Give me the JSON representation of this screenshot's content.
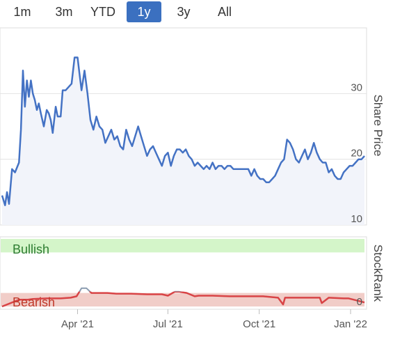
{
  "range_selector": {
    "buttons": [
      "1m",
      "3m",
      "YTD",
      "1y",
      "3y",
      "All"
    ],
    "active": "1y"
  },
  "colors": {
    "price_line": "#4472c4",
    "bullish_band": "#d4f5c9",
    "bearish_band": "#f1cdc8",
    "bullish_text": "#2e7d32",
    "bearish_text": "#c0392b",
    "rank_red": "#d94446",
    "rank_grey": "#8a9bb0",
    "active_button": "#3b70c0"
  },
  "chart_data": [
    {
      "type": "line",
      "xlabel": "",
      "ylabel": "Share Price",
      "ylim": [
        10,
        40
      ],
      "yticks": [
        10,
        20,
        30
      ],
      "grid": true,
      "series": [
        {
          "x": [
            "2021-01-15",
            "2021-01-18",
            "2021-01-20",
            "2021-01-22",
            "2021-01-25",
            "2021-01-28",
            "2021-02-01",
            "2021-02-03",
            "2021-02-05",
            "2021-02-07",
            "2021-02-09",
            "2021-02-11",
            "2021-02-13",
            "2021-02-15",
            "2021-02-17",
            "2021-02-19",
            "2021-02-21",
            "2021-02-23",
            "2021-02-26",
            "2021-03-01",
            "2021-03-03",
            "2021-03-05",
            "2021-03-07",
            "2021-03-10",
            "2021-03-12",
            "2021-03-15",
            "2021-03-17",
            "2021-03-20",
            "2021-03-23",
            "2021-03-26",
            "2021-03-29",
            "2021-04-01",
            "2021-04-03",
            "2021-04-05",
            "2021-04-08",
            "2021-04-11",
            "2021-04-14",
            "2021-04-17",
            "2021-04-20",
            "2021-04-23",
            "2021-04-26",
            "2021-04-29",
            "2021-05-02",
            "2021-05-05",
            "2021-05-08",
            "2021-05-11",
            "2021-05-14",
            "2021-05-17",
            "2021-05-20",
            "2021-05-23",
            "2021-05-26",
            "2021-05-29",
            "2021-06-01",
            "2021-06-04",
            "2021-06-07",
            "2021-06-10",
            "2021-06-13",
            "2021-06-16",
            "2021-06-19",
            "2021-06-22",
            "2021-06-25",
            "2021-06-28",
            "2021-07-01",
            "2021-07-04",
            "2021-07-07",
            "2021-07-10",
            "2021-07-13",
            "2021-07-16",
            "2021-07-19",
            "2021-07-22",
            "2021-07-25",
            "2021-07-28",
            "2021-07-31",
            "2021-08-03",
            "2021-08-06",
            "2021-08-09",
            "2021-08-12",
            "2021-08-15",
            "2021-08-18",
            "2021-08-21",
            "2021-08-24",
            "2021-08-27",
            "2021-08-30",
            "2021-09-02",
            "2021-09-05",
            "2021-09-08",
            "2021-09-11",
            "2021-09-14",
            "2021-09-17",
            "2021-09-20",
            "2021-09-23",
            "2021-09-26",
            "2021-09-29",
            "2021-10-02",
            "2021-10-05",
            "2021-10-08",
            "2021-10-11",
            "2021-10-14",
            "2021-10-17",
            "2021-10-20",
            "2021-10-23",
            "2021-10-26",
            "2021-10-29",
            "2021-11-01",
            "2021-11-04",
            "2021-11-07",
            "2021-11-10",
            "2021-11-13",
            "2021-11-16",
            "2021-11-19",
            "2021-11-22",
            "2021-11-25",
            "2021-11-28",
            "2021-12-01",
            "2021-12-04",
            "2021-12-07",
            "2021-12-10",
            "2021-12-13",
            "2021-12-16",
            "2021-12-19",
            "2021-12-22",
            "2021-12-25",
            "2021-12-28",
            "2021-12-31",
            "2022-01-03",
            "2022-01-06",
            "2022-01-09",
            "2022-01-12",
            "2022-01-15"
          ],
          "values": [
            14.5,
            13.0,
            15.0,
            13.2,
            18.5,
            18.0,
            19.5,
            24.5,
            33.5,
            28.0,
            32.0,
            29.5,
            32.0,
            30.0,
            29.0,
            27.5,
            28.5,
            27.0,
            25.0,
            27.5,
            27.0,
            26.0,
            24.0,
            28.0,
            26.5,
            26.5,
            30.5,
            30.5,
            31.0,
            31.5,
            35.5,
            35.5,
            33.0,
            30.5,
            33.5,
            30.0,
            26.0,
            24.5,
            26.5,
            25.0,
            24.5,
            22.5,
            23.5,
            24.5,
            23.0,
            23.5,
            22.0,
            21.5,
            24.5,
            23.0,
            22.0,
            23.5,
            25.0,
            23.5,
            22.0,
            20.5,
            21.5,
            22.0,
            21.0,
            20.0,
            19.0,
            20.5,
            21.0,
            19.0,
            20.5,
            21.5,
            21.5,
            21.0,
            21.5,
            20.5,
            20.0,
            19.0,
            19.5,
            19.0,
            18.5,
            19.0,
            18.5,
            19.5,
            18.5,
            19.0,
            19.0,
            18.5,
            19.0,
            19.0,
            18.5,
            18.5,
            18.5,
            18.5,
            18.5,
            18.5,
            17.5,
            18.5,
            17.5,
            17.0,
            17.0,
            16.5,
            16.5,
            17.0,
            17.5,
            18.5,
            19.5,
            20.0,
            23.0,
            22.5,
            21.5,
            20.0,
            19.5,
            20.5,
            21.5,
            20.0,
            21.0,
            22.5,
            21.0,
            20.0,
            19.5,
            19.5,
            18.0,
            18.5,
            17.5,
            17.0,
            17.0,
            18.0,
            18.5,
            19.0,
            19.0,
            19.5,
            20.0,
            20.0,
            20.5
          ]
        }
      ]
    },
    {
      "type": "line",
      "ylabel": "StockRank",
      "ylim": [
        0,
        100
      ],
      "yticks": [
        0
      ],
      "bands": [
        {
          "label": "Bullish",
          "from": 80,
          "to": 100
        },
        {
          "label": "Bearish",
          "from": 0,
          "to": 20
        }
      ],
      "series": [
        {
          "x": [
            "2021-01-15",
            "2021-02-01",
            "2021-02-10",
            "2021-02-15",
            "2021-03-01",
            "2021-03-15",
            "2021-03-25",
            "2021-03-31",
            "2021-04-05",
            "2021-04-10",
            "2021-04-15",
            "2021-04-25",
            "2021-05-01",
            "2021-05-10",
            "2021-05-25",
            "2021-06-10",
            "2021-06-25",
            "2021-07-01",
            "2021-07-08",
            "2021-07-12",
            "2021-07-20",
            "2021-07-28",
            "2021-08-01",
            "2021-08-15",
            "2021-09-01",
            "2021-09-20",
            "2021-10-05",
            "2021-10-20",
            "2021-10-25",
            "2021-10-27",
            "2021-11-01",
            "2021-11-15",
            "2021-11-28",
            "2021-12-01",
            "2021-12-03",
            "2021-12-10",
            "2021-12-25",
            "2021-12-30",
            "2022-01-15"
          ],
          "values": [
            0,
            10,
            10,
            11,
            12,
            12,
            13,
            15,
            27,
            27,
            20,
            20,
            20,
            19,
            19,
            18,
            18,
            16,
            22,
            22,
            20,
            15,
            16,
            16,
            15,
            15,
            15,
            13,
            3,
            13,
            13,
            13,
            13,
            13,
            5,
            13,
            12,
            12,
            6
          ]
        }
      ]
    }
  ],
  "x_axis": {
    "ticks": [
      {
        "label": "Apr '21",
        "date": "2021-04-01"
      },
      {
        "label": "Jul '21",
        "date": "2021-07-01"
      },
      {
        "label": "Oct '21",
        "date": "2021-10-01"
      },
      {
        "label": "Jan '22",
        "date": "2022-01-01"
      }
    ]
  }
}
